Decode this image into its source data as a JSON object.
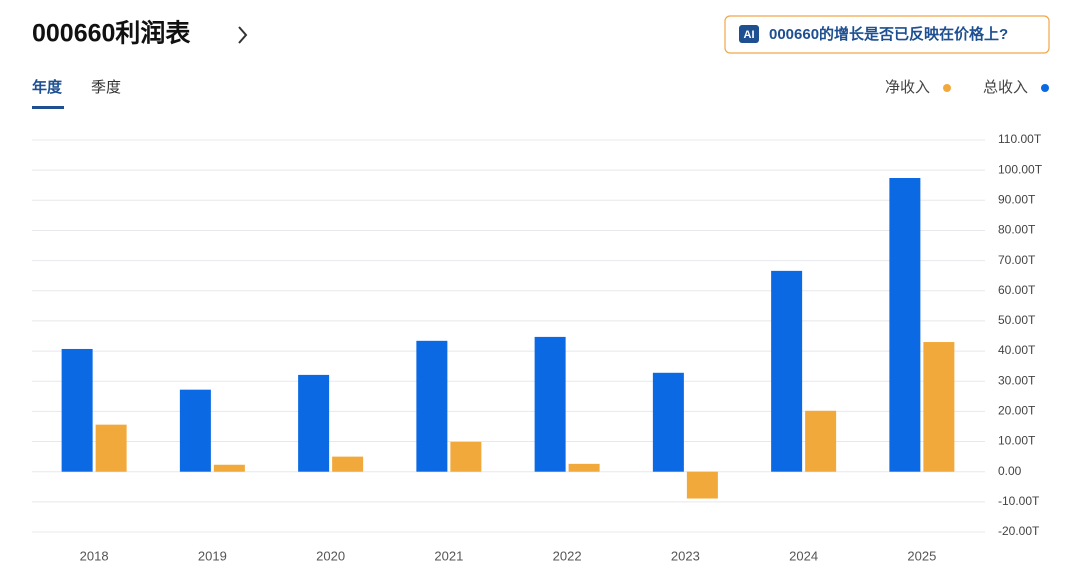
{
  "header": {
    "title": "000660利润表"
  },
  "ai_button": {
    "badge": "AI",
    "text": "000660的增长是否已反映在价格上?"
  },
  "tabs": [
    "年度",
    "季度"
  ],
  "chart_data": {
    "type": "bar",
    "categories": [
      "2018",
      "2019",
      "2020",
      "2021",
      "2022",
      "2023",
      "2024",
      "2025"
    ],
    "series": [
      {
        "name": "净收入",
        "color": "#f2a93b",
        "values": [
          15.6,
          2.3,
          5.0,
          9.9,
          2.6,
          -8.9,
          20.2,
          43.0
        ]
      },
      {
        "name": "总收入",
        "color": "#0b69e3",
        "values": [
          40.7,
          27.2,
          32.1,
          43.4,
          44.7,
          32.8,
          66.6,
          97.4
        ]
      }
    ],
    "ylim": [
      -20,
      110
    ],
    "yticks": [
      {
        "value": 110,
        "label": "110.00T"
      },
      {
        "value": 100,
        "label": "100.00T"
      },
      {
        "value": 90,
        "label": "90.00T"
      },
      {
        "value": 80,
        "label": "80.00T"
      },
      {
        "value": 70,
        "label": "70.00T"
      },
      {
        "value": 60,
        "label": "60.00T"
      },
      {
        "value": 50,
        "label": "50.00T"
      },
      {
        "value": 40,
        "label": "40.00T"
      },
      {
        "value": 30,
        "label": "30.00T"
      },
      {
        "value": 20,
        "label": "20.00T"
      },
      {
        "value": 10,
        "label": "10.00T"
      },
      {
        "value": 0,
        "label": "0.00"
      },
      {
        "value": -10,
        "label": "-10.00T"
      },
      {
        "value": -20,
        "label": "-20.00T"
      }
    ],
    "grid": true,
    "legend": "top-right"
  }
}
